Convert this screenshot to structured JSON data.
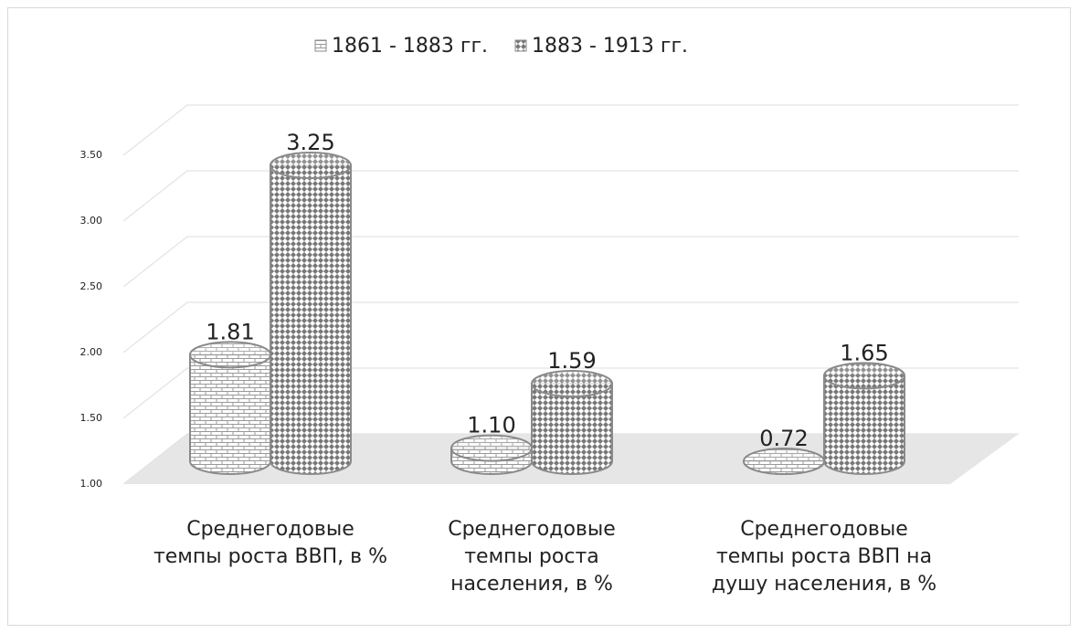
{
  "chart_data": {
    "type": "bar3d",
    "categories": [
      "Среднегодовые темпы роста ВВП, в %",
      "Среднегодовые темпы роста населения, в %",
      "Среднегодовые темпы роста ВВП на душу населения, в %"
    ],
    "series": [
      {
        "name": "1861 - 1883 гг.",
        "color": "#8c8c8c",
        "values": [
          1.81,
          1.1,
          0.72
        ],
        "value_labels": [
          "1.81",
          "1.10",
          "0.72"
        ]
      },
      {
        "name": "1883 - 1913 гг.",
        "color": "#6e6e6e",
        "values": [
          3.25,
          1.59,
          1.65
        ],
        "value_labels": [
          "3.25",
          "1.59",
          "1.65"
        ]
      }
    ],
    "ylim": [
      1,
      3.5
    ],
    "yticks": [
      {
        "value": 1,
        "label": "1.00"
      },
      {
        "value": 1.5,
        "label": "1.50"
      },
      {
        "value": 2,
        "label": "2.00"
      },
      {
        "value": 2.5,
        "label": "2.50"
      },
      {
        "value": 3,
        "label": "3.00"
      },
      {
        "value": 3.5,
        "label": "3.50"
      }
    ],
    "grid": true,
    "legend": "top"
  }
}
